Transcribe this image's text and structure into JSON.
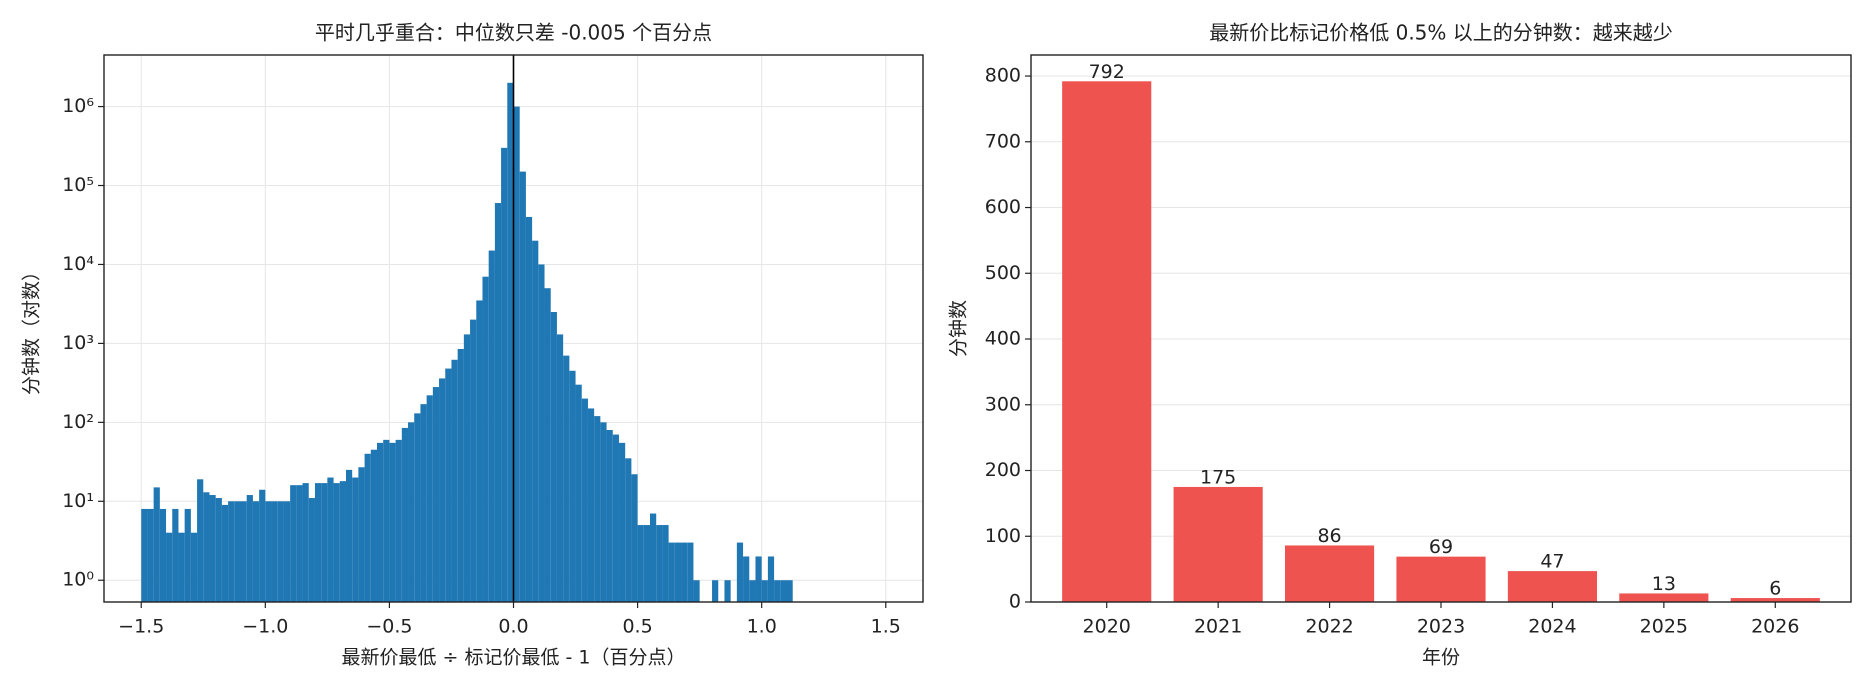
{
  "chart_data": [
    {
      "type": "histogram",
      "title": "平时几乎重合：中位数只差 -0.005 个百分点",
      "xlabel": "最新价最低 ÷ 标记价最低 - 1（百分点）",
      "ylabel": "分钟数（对数）",
      "color": "#1f77b4",
      "yscale": "log",
      "grid": "both",
      "vline": 0,
      "bins": [
        -1.5,
        -1.475,
        -1.45,
        -1.425,
        -1.4,
        -1.375,
        -1.35,
        -1.325,
        -1.3,
        -1.275,
        -1.25,
        -1.225,
        -1.2,
        -1.175,
        -1.15,
        -1.125,
        -1.1,
        -1.075,
        -1.05,
        -1.025,
        -1,
        -0.975,
        -0.95,
        -0.925,
        -0.9,
        -0.875,
        -0.85,
        -0.825,
        -0.8,
        -0.775,
        -0.75,
        -0.725,
        -0.7,
        -0.675,
        -0.65,
        -0.625,
        -0.6,
        -0.575,
        -0.55,
        -0.525,
        -0.5,
        -0.475,
        -0.45,
        -0.425,
        -0.4,
        -0.375,
        -0.35,
        -0.325,
        -0.3,
        -0.275,
        -0.25,
        -0.225,
        -0.2,
        -0.175,
        -0.15,
        -0.125,
        -0.1,
        -0.075,
        -0.05,
        -0.025,
        0,
        0.025,
        0.05,
        0.075,
        0.1,
        0.125,
        0.15,
        0.175,
        0.2,
        0.225,
        0.25,
        0.275,
        0.3,
        0.325,
        0.35,
        0.375,
        0.4,
        0.425,
        0.45,
        0.475,
        0.5,
        0.525,
        0.55,
        0.575,
        0.6,
        0.625,
        0.65,
        0.675,
        0.7,
        0.725,
        0.75,
        0.775,
        0.8,
        0.825,
        0.85,
        0.875,
        0.9,
        0.925,
        0.95,
        0.975,
        1,
        1.025,
        1.05,
        1.075,
        1.1,
        1.125,
        1.15,
        1.175,
        1.2,
        1.225,
        1.25,
        1.275,
        1.3,
        1.325,
        1.35,
        1.375,
        1.4,
        1.425,
        1.45,
        1.475,
        1.5
      ],
      "values": [
        8,
        8,
        15,
        8,
        4,
        8,
        4,
        8,
        4,
        19,
        13,
        12,
        11,
        9,
        10,
        10,
        10,
        12,
        10,
        14,
        10,
        10,
        10,
        10,
        16,
        16,
        17,
        11,
        17,
        17,
        20,
        17,
        18,
        25,
        20,
        27,
        40,
        45,
        55,
        60,
        55,
        60,
        85,
        100,
        130,
        170,
        220,
        280,
        360,
        480,
        620,
        850,
        1300,
        2000,
        3500,
        7000,
        15000,
        60000,
        300000,
        2000000,
        1000000,
        150000,
        40000,
        20000,
        10000,
        5000,
        2500,
        1300,
        700,
        450,
        300,
        200,
        150,
        120,
        100,
        80,
        70,
        55,
        35,
        22,
        5,
        5,
        7,
        5,
        5,
        3,
        3,
        3,
        3,
        1,
        0,
        0,
        1,
        0,
        1,
        0,
        3,
        2,
        1,
        2,
        1,
        2,
        1,
        1,
        1,
        0,
        0,
        0,
        0,
        0,
        0,
        0,
        0,
        0,
        0,
        0,
        0,
        0,
        0,
        0
      ],
      "xlim": [
        -1.65,
        1.65
      ],
      "xticks": [
        {
          "value": -1.5,
          "label": "−1.5"
        },
        {
          "value": -1,
          "label": "−1.0"
        },
        {
          "value": -0.5,
          "label": "−0.5"
        },
        {
          "value": 0,
          "label": "0.0"
        },
        0.5,
        {
          "value": 1,
          "label": "1.0"
        },
        1.5
      ],
      "ylim": [
        0.53,
        4500000
      ],
      "yticks": [
        {
          "value": 1,
          "label": "10⁰"
        },
        {
          "value": 10,
          "label": "10¹"
        },
        {
          "value": 100,
          "label": "10²"
        },
        {
          "value": 1000,
          "label": "10³"
        },
        {
          "value": 10000,
          "label": "10⁴"
        },
        {
          "value": 100000,
          "label": "10⁵"
        },
        {
          "value": 1000000,
          "label": "10⁶"
        }
      ]
    },
    {
      "type": "bar",
      "title": "最新价比标记价格低 0.5% 以上的分钟数：越来越少",
      "xlabel": "年份",
      "ylabel": "分钟数",
      "color": "#ef5350",
      "grid": "y",
      "categories": [
        "2020",
        "2021",
        "2022",
        "2023",
        "2024",
        "2025",
        "2026"
      ],
      "values": [
        792,
        175,
        86,
        69,
        47,
        13,
        6
      ],
      "ylim": [
        0,
        832
      ],
      "yticks": [
        0,
        100,
        200,
        300,
        400,
        500,
        600,
        700,
        800
      ]
    }
  ]
}
